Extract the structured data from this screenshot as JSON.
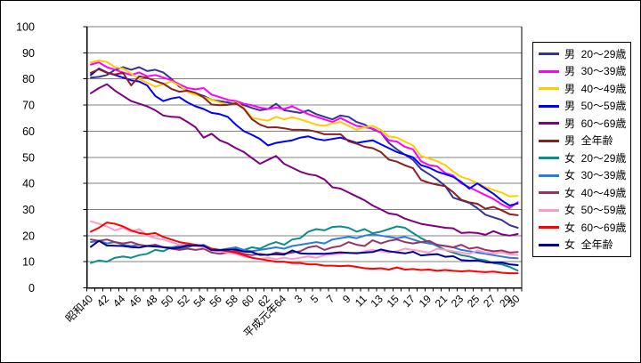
{
  "figure": {
    "background": "#FFFFFF",
    "border_color": "#000000",
    "gridline_color": "#808080",
    "axis_color": "#000000"
  },
  "legend": {
    "position": "right",
    "border_color": "#000000"
  },
  "chart_data": {
    "type": "line",
    "grid": true,
    "legend_position": "right",
    "y_axis": {
      "min": 0,
      "max": 100,
      "step": 10,
      "tick_labels": [
        "0",
        "10",
        "20",
        "30",
        "40",
        "50",
        "60",
        "70",
        "80",
        "90",
        "100"
      ]
    },
    "x_axis": {
      "n_points": 54,
      "tick_labels": [
        "昭和40",
        "42",
        "44",
        "46",
        "48",
        "50",
        "52",
        "54",
        "56",
        "58",
        "60",
        "62",
        "平成元年64",
        "3",
        "5",
        "7",
        "9",
        "11",
        "13",
        "15",
        "17",
        "19",
        "21",
        "23",
        "25",
        "27",
        "29",
        "30"
      ],
      "tick_label_indices": [
        0,
        2,
        4,
        6,
        8,
        10,
        12,
        14,
        16,
        18,
        20,
        22,
        24,
        26,
        28,
        30,
        32,
        34,
        36,
        38,
        40,
        42,
        44,
        46,
        48,
        50,
        52,
        53
      ]
    },
    "series": [
      {
        "key": "m20",
        "label": "男  20〜29歳",
        "color": "#333399",
        "values": [
          80.5,
          80.8,
          81.5,
          83.5,
          84.5,
          83.5,
          84.5,
          83.0,
          83.5,
          82.5,
          80.0,
          77.0,
          75.5,
          74.5,
          73.5,
          72.0,
          71.5,
          71.0,
          70.5,
          70.0,
          68.9,
          68.0,
          68.5,
          70.5,
          68.0,
          67.5,
          67.0,
          68.0,
          66.5,
          65.5,
          64.5,
          66.0,
          65.5,
          63.5,
          62.5,
          60.7,
          59.5,
          55.5,
          53.0,
          51.0,
          49.0,
          45.5,
          43.5,
          41.5,
          39.0,
          34.5,
          33.5,
          32.5,
          30.5,
          28.0,
          27.0,
          26.0,
          24.0,
          23.0
        ]
      },
      {
        "key": "m30",
        "label": "男  30〜39歳",
        "color": "#FF00FF",
        "values": [
          85.5,
          86.3,
          84.5,
          83.5,
          82.5,
          81.5,
          82.5,
          81.0,
          81.5,
          80.5,
          79.5,
          78.0,
          76.5,
          76.0,
          76.5,
          74.0,
          73.0,
          72.0,
          71.5,
          70.5,
          69.9,
          69.0,
          68.5,
          69.0,
          68.5,
          69.5,
          68.0,
          66.5,
          65.5,
          64.5,
          63.5,
          65.0,
          63.5,
          62.0,
          61.5,
          61.0,
          59.5,
          56.5,
          56.0,
          54.0,
          53.0,
          48.5,
          47.0,
          46.5,
          44.0,
          43.0,
          40.0,
          38.5,
          37.0,
          35.5,
          34.0,
          32.0,
          30.5,
          32.8
        ]
      },
      {
        "key": "m40",
        "label": "男  40〜49歳",
        "color": "#FFCC00",
        "values": [
          86.3,
          87.1,
          86.5,
          84.5,
          84.0,
          82.0,
          80.0,
          78.5,
          77.0,
          78.0,
          79.0,
          77.5,
          75.0,
          74.0,
          73.0,
          72.0,
          71.0,
          70.0,
          71.0,
          69.0,
          65.1,
          64.5,
          64.0,
          65.5,
          64.5,
          65.3,
          64.5,
          63.5,
          62.5,
          62.0,
          63.0,
          63.5,
          62.0,
          60.5,
          61.5,
          62.0,
          60.5,
          58.0,
          57.5,
          56.0,
          54.5,
          50.5,
          49.5,
          48.5,
          47.0,
          44.5,
          42.5,
          41.5,
          40.0,
          38.5,
          37.5,
          36.5,
          35.0,
          35.2
        ]
      },
      {
        "key": "m50",
        "label": "男  50〜59歳",
        "color": "#0000FF",
        "values": [
          81.5,
          84.0,
          82.5,
          81.5,
          80.5,
          79.5,
          79.0,
          77.5,
          73.5,
          71.5,
          72.5,
          73.0,
          71.0,
          69.5,
          68.5,
          67.0,
          66.5,
          65.5,
          62.5,
          60.0,
          58.6,
          57.0,
          54.5,
          55.5,
          56.0,
          56.5,
          57.5,
          58.0,
          57.0,
          56.5,
          57.0,
          57.5,
          56.5,
          55.5,
          56.0,
          56.5,
          55.0,
          53.5,
          52.0,
          51.0,
          50.0,
          47.0,
          46.0,
          44.5,
          43.5,
          42.5,
          40.5,
          38.0,
          40.0,
          38.0,
          36.0,
          33.5,
          31.5,
          32.3
        ]
      },
      {
        "key": "m60",
        "label": "男  60〜69歳",
        "color": "#800080",
        "values": [
          74.5,
          76.5,
          78.0,
          75.5,
          73.5,
          71.5,
          70.5,
          69.5,
          68.0,
          66.0,
          65.5,
          65.3,
          63.5,
          61.5,
          57.5,
          59.0,
          56.5,
          55.3,
          53.5,
          52.0,
          49.7,
          47.5,
          49.0,
          50.5,
          47.5,
          46.0,
          44.5,
          43.5,
          43.0,
          41.5,
          38.5,
          38.0,
          36.5,
          35.0,
          33.5,
          31.5,
          30.0,
          28.5,
          28.0,
          26.5,
          25.5,
          24.5,
          24.0,
          23.5,
          23.0,
          22.8,
          21.0,
          21.2,
          21.0,
          20.3,
          21.7,
          20.5,
          20.0,
          20.6
        ]
      },
      {
        "key": "mall",
        "label": "男  全年齢",
        "color": "#8B2020",
        "values": [
          82.3,
          83.7,
          82.3,
          81.7,
          82.3,
          77.5,
          81.0,
          80.4,
          79.2,
          78.2,
          76.2,
          75.1,
          75.5,
          74.7,
          72.9,
          70.2,
          69.9,
          70.1,
          70.7,
          68.6,
          64.6,
          62.5,
          61.4,
          61.5,
          61.1,
          60.5,
          60.5,
          60.4,
          59.8,
          58.8,
          58.8,
          58.8,
          56.1,
          55.2,
          54.0,
          53.5,
          52.0,
          49.1,
          48.3,
          46.9,
          45.8,
          41.3,
          40.2,
          39.5,
          38.9,
          36.6,
          33.7,
          32.7,
          32.2,
          30.3,
          31.0,
          29.7,
          28.2,
          27.8
        ]
      },
      {
        "key": "f20",
        "label": "女  20〜29歳",
        "color": "#0E8C8C",
        "values": [
          9.5,
          10.5,
          10.0,
          11.5,
          12.0,
          11.5,
          12.5,
          13.0,
          14.5,
          14.0,
          15.5,
          15.0,
          15.5,
          16.5,
          16.0,
          14.5,
          14.0,
          14.5,
          15.0,
          14.5,
          15.5,
          15.0,
          16.5,
          17.5,
          16.5,
          18.5,
          19.0,
          21.5,
          22.5,
          22.0,
          23.3,
          23.5,
          23.0,
          21.5,
          22.5,
          20.9,
          21.5,
          22.5,
          23.5,
          23.0,
          21.0,
          19.0,
          17.5,
          16.0,
          14.5,
          13.5,
          12.5,
          12.0,
          11.0,
          10.5,
          9.5,
          9.0,
          8.0,
          6.6
        ]
      },
      {
        "key": "f30",
        "label": "女  30〜39歳",
        "color": "#2B7CD9",
        "values": [
          17.5,
          18.0,
          17.0,
          17.5,
          16.5,
          16.0,
          16.5,
          16.0,
          16.5,
          15.5,
          15.5,
          16.0,
          16.5,
          16.0,
          16.5,
          15.0,
          14.5,
          15.0,
          15.5,
          14.5,
          14.0,
          14.5,
          15.0,
          15.5,
          15.0,
          16.0,
          16.5,
          17.0,
          17.5,
          17.0,
          18.5,
          19.0,
          19.5,
          19.0,
          20.0,
          20.5,
          20.0,
          19.5,
          19.0,
          19.5,
          18.5,
          17.5,
          17.0,
          16.5,
          16.0,
          15.5,
          14.5,
          14.0,
          13.5,
          13.0,
          12.5,
          12.0,
          11.5,
          11.3
        ]
      },
      {
        "key": "f40",
        "label": "女  40〜49歳",
        "color": "#993366",
        "values": [
          18.5,
          18.0,
          18.5,
          17.5,
          17.0,
          17.5,
          16.5,
          16.0,
          16.5,
          15.5,
          15.0,
          14.5,
          15.0,
          14.5,
          15.0,
          13.5,
          13.0,
          13.5,
          14.0,
          13.0,
          12.5,
          13.0,
          12.5,
          13.5,
          13.0,
          13.5,
          14.0,
          15.5,
          16.0,
          14.5,
          15.5,
          16.0,
          17.5,
          16.5,
          16.0,
          18.2,
          17.0,
          18.0,
          18.5,
          17.5,
          17.0,
          17.5,
          18.0,
          16.5,
          16.0,
          15.5,
          16.5,
          15.0,
          15.5,
          14.5,
          14.0,
          14.3,
          13.5,
          13.7
        ]
      },
      {
        "key": "f50",
        "label": "女  50〜59歳",
        "color": "#FF99CC",
        "values": [
          25.5,
          24.5,
          23.5,
          22.0,
          23.0,
          21.5,
          22.5,
          20.0,
          19.0,
          18.5,
          17.5,
          16.5,
          17.0,
          16.0,
          15.5,
          14.5,
          14.0,
          13.5,
          13.0,
          12.0,
          11.5,
          11.0,
          11.5,
          11.0,
          11.5,
          11.0,
          11.5,
          12.0,
          11.5,
          12.5,
          12.8,
          13.0,
          13.5,
          13.0,
          14.0,
          14.5,
          14.0,
          13.5,
          14.0,
          15.0,
          14.5,
          14.0,
          13.5,
          15.0,
          14.5,
          14.0,
          13.5,
          13.0,
          14.3,
          13.5,
          13.3,
          13.6,
          12.8,
          12.6
        ]
      },
      {
        "key": "f60",
        "label": "女  60〜69歳",
        "color": "#FF0000",
        "values": [
          21.5,
          23.0,
          25.0,
          24.5,
          23.5,
          22.0,
          21.0,
          20.5,
          21.0,
          19.5,
          18.5,
          17.5,
          17.0,
          16.5,
          16.0,
          15.0,
          14.5,
          14.0,
          13.5,
          12.5,
          11.5,
          11.0,
          10.5,
          10.0,
          10.0,
          9.5,
          9.5,
          9.0,
          9.0,
          8.5,
          8.5,
          8.3,
          8.5,
          8.0,
          7.5,
          7.3,
          7.5,
          7.0,
          7.8,
          7.0,
          7.2,
          6.8,
          7.0,
          6.5,
          6.8,
          6.5,
          6.3,
          6.5,
          6.2,
          6.0,
          6.2,
          5.8,
          5.6,
          5.6
        ]
      },
      {
        "key": "fall",
        "label": "女  全年齢",
        "color": "#000099",
        "values": [
          15.7,
          18.0,
          16.2,
          16.1,
          16.0,
          15.6,
          15.4,
          16.0,
          15.8,
          15.6,
          15.1,
          15.4,
          16.2,
          16.2,
          16.1,
          14.4,
          14.4,
          14.6,
          14.6,
          13.9,
          13.7,
          12.6,
          12.7,
          12.9,
          12.7,
          14.3,
          13.2,
          13.0,
          13.1,
          13.0,
          13.3,
          13.6,
          13.4,
          13.3,
          13.5,
          13.7,
          14.7,
          14.0,
          13.6,
          13.2,
          13.8,
          12.4,
          12.7,
          12.9,
          11.9,
          12.1,
          10.6,
          10.4,
          10.5,
          9.8,
          9.6,
          9.7,
          9.0,
          8.7
        ]
      }
    ]
  }
}
